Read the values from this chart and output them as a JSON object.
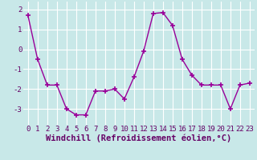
{
  "x": [
    0,
    1,
    2,
    3,
    4,
    5,
    6,
    7,
    8,
    9,
    10,
    11,
    12,
    13,
    14,
    15,
    16,
    17,
    18,
    19,
    20,
    21,
    22,
    23
  ],
  "y": [
    1.7,
    -0.5,
    -1.8,
    -1.8,
    -3.0,
    -3.3,
    -3.3,
    -2.1,
    -2.1,
    -2.0,
    -2.5,
    -1.4,
    -0.1,
    1.8,
    1.85,
    1.2,
    -0.5,
    -1.3,
    -1.8,
    -1.8,
    -1.8,
    -3.0,
    -1.8,
    -1.7
  ],
  "line_color": "#990099",
  "marker": "+",
  "marker_size": 4,
  "marker_linewidth": 1.2,
  "line_width": 1.0,
  "bg_color": "#c8e8e8",
  "grid_color": "#ffffff",
  "xlabel": "Windchill (Refroidissement éolien,°C)",
  "xlabel_color": "#660066",
  "xlabel_fontsize": 7.5,
  "tick_color": "#660066",
  "tick_fontsize": 6.5,
  "ylim": [
    -3.8,
    2.4
  ],
  "xlim": [
    -0.5,
    23.5
  ],
  "yticks": [
    -3,
    -2,
    -1,
    0,
    1,
    2
  ],
  "xticks": [
    0,
    1,
    2,
    3,
    4,
    5,
    6,
    7,
    8,
    9,
    10,
    11,
    12,
    13,
    14,
    15,
    16,
    17,
    18,
    19,
    20,
    21,
    22,
    23
  ]
}
